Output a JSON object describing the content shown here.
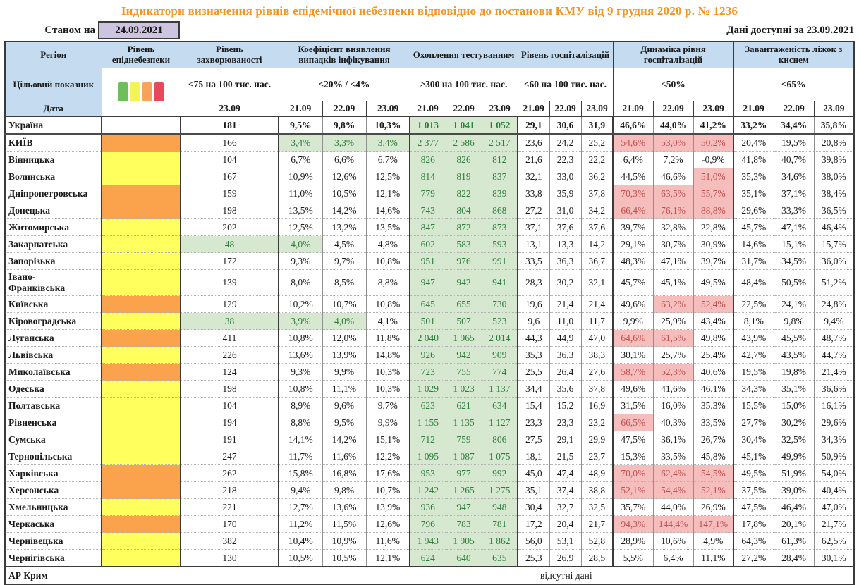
{
  "title": "Індикатори визначення рівнів епідемічної небезпеки відповідно до постанови КМУ від 9 грудня 2020 р. № 1236",
  "as_of": {
    "label": "Станом на",
    "date": "24.09.2021"
  },
  "data_available": "Дані доступні за 23.09.2021",
  "colors": {
    "title_orange": "#F7941D",
    "header_blue": "#C5DCF0",
    "date_box_lavender": "#CDC4DF",
    "level_orange": "#FBA24D",
    "level_yellow": "#FFFF5D",
    "good_bg_green": "#D7E8D1",
    "good_text_green": "#2E7D3B",
    "bad_bg_red": "#F6BDBD",
    "bad_text_red": "#C0504D"
  },
  "legend_swatches": [
    "#6EBF5C",
    "#F2F457",
    "#F8A25A",
    "#E6485D"
  ],
  "header": {
    "region_label": "Регіон",
    "target_label": "Цільовий показник",
    "date_label": "Дата",
    "groups": [
      {
        "label": "Рівень епіднебезпеки",
        "target": "",
        "dates": []
      },
      {
        "label": "Рівень захворюваності",
        "target": "<75 на 100 тис. нас.",
        "dates": [
          "23.09"
        ]
      },
      {
        "label": "Коефіцієнт виявлення випадків інфікування",
        "target": "≤20% / <4%",
        "dates": [
          "21.09",
          "22.09",
          "23.09"
        ]
      },
      {
        "label": "Охоплення тестуванням",
        "target": "≥300 на 100 тис. нас.",
        "dates": [
          "21.09",
          "22.09",
          "23.09"
        ]
      },
      {
        "label": "Рівень госпіталізацій",
        "target": "≤60 на 100 тис. нас.",
        "dates": [
          "21.09",
          "22.09",
          "23.09"
        ]
      },
      {
        "label": "Динаміка рівня госпіталізацій",
        "target": "≤50%",
        "dates": [
          "21.09",
          "22.09",
          "23.09"
        ]
      },
      {
        "label": "Завантаженість ліжок з киснем",
        "target": "≤65%",
        "dates": [
          "21.09",
          "22.09",
          "23.09"
        ]
      }
    ]
  },
  "rows": [
    {
      "region": "Україна",
      "level": "none",
      "bold": true,
      "incidence": "181",
      "detection": [
        "9,5%",
        "9,8%",
        "10,3%"
      ],
      "testing": [
        "1 013",
        "1 041",
        "1 052"
      ],
      "hospital": [
        "29,1",
        "30,6",
        "31,9"
      ],
      "dynamics": [
        "46,6%",
        "44,0%",
        "41,2%"
      ],
      "beds": [
        "33,2%",
        "34,4%",
        "35,8%"
      ]
    },
    {
      "region": "КИЇВ",
      "level": "orange",
      "incidence": "166",
      "detection": [
        "3,4%",
        "3,3%",
        "3,4%"
      ],
      "detection_green": [
        true,
        true,
        true
      ],
      "testing": [
        "2 377",
        "2 586",
        "2 517"
      ],
      "hospital": [
        "23,6",
        "24,2",
        "25,2"
      ],
      "dynamics": [
        "54,6%",
        "53,0%",
        "50,2%"
      ],
      "dynamics_red": [
        true,
        true,
        true
      ],
      "beds": [
        "20,4%",
        "19,5%",
        "20,8%"
      ]
    },
    {
      "region": "Вінницька",
      "level": "yellow",
      "incidence": "104",
      "detection": [
        "6,7%",
        "6,6%",
        "6,7%"
      ],
      "testing": [
        "826",
        "826",
        "812"
      ],
      "hospital": [
        "21,6",
        "22,3",
        "22,2"
      ],
      "dynamics": [
        "6,4%",
        "7,2%",
        "-0,9%"
      ],
      "beds": [
        "41,8%",
        "40,7%",
        "39,8%"
      ]
    },
    {
      "region": "Волинська",
      "level": "yellow",
      "incidence": "167",
      "detection": [
        "10,9%",
        "12,6%",
        "12,5%"
      ],
      "testing": [
        "814",
        "819",
        "837"
      ],
      "hospital": [
        "32,1",
        "33,0",
        "36,2"
      ],
      "dynamics": [
        "44,5%",
        "46,6%",
        "51,0%"
      ],
      "dynamics_red": [
        false,
        false,
        true
      ],
      "beds": [
        "35,3%",
        "34,6%",
        "38,0%"
      ]
    },
    {
      "region": "Дніпропетровська",
      "level": "orange",
      "incidence": "159",
      "detection": [
        "11,0%",
        "10,5%",
        "12,1%"
      ],
      "testing": [
        "779",
        "822",
        "839"
      ],
      "hospital": [
        "33,8",
        "35,9",
        "37,8"
      ],
      "dynamics": [
        "70,3%",
        "63,5%",
        "55,7%"
      ],
      "dynamics_red": [
        true,
        true,
        true
      ],
      "beds": [
        "35,1%",
        "37,1%",
        "38,4%"
      ]
    },
    {
      "region": "Донецька",
      "level": "orange",
      "incidence": "198",
      "detection": [
        "13,5%",
        "14,2%",
        "14,6%"
      ],
      "testing": [
        "743",
        "804",
        "868"
      ],
      "hospital": [
        "27,2",
        "31,0",
        "34,2"
      ],
      "dynamics": [
        "66,4%",
        "76,1%",
        "88,8%"
      ],
      "dynamics_red": [
        true,
        true,
        true
      ],
      "beds": [
        "29,6%",
        "33,3%",
        "36,5%"
      ]
    },
    {
      "region": "Житомирська",
      "level": "yellow",
      "incidence": "202",
      "detection": [
        "12,5%",
        "13,2%",
        "13,5%"
      ],
      "testing": [
        "847",
        "872",
        "873"
      ],
      "hospital": [
        "37,1",
        "37,6",
        "37,6"
      ],
      "dynamics": [
        "39,7%",
        "32,8%",
        "22,8%"
      ],
      "beds": [
        "45,7%",
        "47,1%",
        "46,4%"
      ]
    },
    {
      "region": "Закарпатська",
      "level": "yellow",
      "incidence": "48",
      "incidence_green": true,
      "detection": [
        "4,0%",
        "4,5%",
        "4,8%"
      ],
      "detection_green": [
        true,
        false,
        false
      ],
      "testing": [
        "602",
        "583",
        "593"
      ],
      "hospital": [
        "13,1",
        "13,3",
        "14,2"
      ],
      "dynamics": [
        "29,1%",
        "30,7%",
        "30,9%"
      ],
      "beds": [
        "14,6%",
        "15,1%",
        "15,7%"
      ]
    },
    {
      "region": "Запорізька",
      "level": "yellow",
      "incidence": "172",
      "detection": [
        "9,3%",
        "9,7%",
        "10,8%"
      ],
      "testing": [
        "951",
        "976",
        "991"
      ],
      "hospital": [
        "33,5",
        "36,3",
        "36,7"
      ],
      "dynamics": [
        "48,3%",
        "47,1%",
        "39,7%"
      ],
      "beds": [
        "31,7%",
        "34,5%",
        "36,0%"
      ]
    },
    {
      "region": "Івано-\nФранківська",
      "level": "yellow",
      "incidence": "139",
      "detection": [
        "8,0%",
        "8,5%",
        "8,8%"
      ],
      "testing": [
        "947",
        "942",
        "941"
      ],
      "hospital": [
        "28,3",
        "30,2",
        "32,1"
      ],
      "dynamics": [
        "45,7%",
        "45,1%",
        "49,5%"
      ],
      "beds": [
        "48,4%",
        "50,5%",
        "51,2%"
      ]
    },
    {
      "region": "Київська",
      "level": "orange",
      "incidence": "129",
      "detection": [
        "10,2%",
        "10,7%",
        "10,8%"
      ],
      "testing": [
        "645",
        "655",
        "730"
      ],
      "hospital": [
        "19,6",
        "21,4",
        "21,4"
      ],
      "dynamics": [
        "49,6%",
        "63,2%",
        "52,4%"
      ],
      "dynamics_red": [
        false,
        true,
        true
      ],
      "beds": [
        "22,5%",
        "24,1%",
        "24,8%"
      ]
    },
    {
      "region": "Кіровоградська",
      "level": "yellow",
      "incidence": "38",
      "incidence_green": true,
      "detection": [
        "3,9%",
        "4,0%",
        "4,1%"
      ],
      "detection_green": [
        true,
        true,
        false
      ],
      "testing": [
        "501",
        "507",
        "523"
      ],
      "hospital": [
        "9,6",
        "11,0",
        "11,7"
      ],
      "dynamics": [
        "9,9%",
        "25,9%",
        "43,4%"
      ],
      "beds": [
        "8,1%",
        "9,8%",
        "9,4%"
      ]
    },
    {
      "region": "Луганська",
      "level": "orange",
      "incidence": "411",
      "detection": [
        "10,8%",
        "12,0%",
        "11,8%"
      ],
      "testing": [
        "2 040",
        "1 965",
        "2 014"
      ],
      "hospital": [
        "44,3",
        "44,9",
        "47,0"
      ],
      "dynamics": [
        "64,6%",
        "61,5%",
        "49,8%"
      ],
      "dynamics_red": [
        true,
        true,
        false
      ],
      "beds": [
        "43,9%",
        "45,5%",
        "48,7%"
      ]
    },
    {
      "region": "Львівська",
      "level": "yellow",
      "incidence": "226",
      "detection": [
        "13,6%",
        "13,9%",
        "14,8%"
      ],
      "testing": [
        "926",
        "942",
        "909"
      ],
      "hospital": [
        "35,3",
        "36,3",
        "38,3"
      ],
      "dynamics": [
        "30,1%",
        "25,7%",
        "25,4%"
      ],
      "beds": [
        "42,7%",
        "43,5%",
        "44,7%"
      ]
    },
    {
      "region": "Миколаївська",
      "level": "orange",
      "incidence": "124",
      "detection": [
        "9,3%",
        "9,9%",
        "10,3%"
      ],
      "testing": [
        "723",
        "755",
        "774"
      ],
      "hospital": [
        "25,5",
        "26,4",
        "27,6"
      ],
      "dynamics": [
        "58,7%",
        "52,3%",
        "40,6%"
      ],
      "dynamics_red": [
        true,
        true,
        false
      ],
      "beds": [
        "19,5%",
        "19,8%",
        "21,4%"
      ]
    },
    {
      "region": "Одеська",
      "level": "yellow",
      "incidence": "198",
      "detection": [
        "10,8%",
        "11,1%",
        "10,3%"
      ],
      "testing": [
        "1 029",
        "1 023",
        "1 137"
      ],
      "hospital": [
        "34,4",
        "35,6",
        "37,8"
      ],
      "dynamics": [
        "49,6%",
        "41,6%",
        "46,1%"
      ],
      "beds": [
        "34,3%",
        "35,1%",
        "36,6%"
      ]
    },
    {
      "region": "Полтавська",
      "level": "yellow",
      "incidence": "104",
      "detection": [
        "8,9%",
        "9,6%",
        "9,7%"
      ],
      "testing": [
        "623",
        "621",
        "634"
      ],
      "hospital": [
        "15,4",
        "15,2",
        "16,9"
      ],
      "dynamics": [
        "31,5%",
        "16,0%",
        "35,3%"
      ],
      "beds": [
        "15,5%",
        "15,0%",
        "16,1%"
      ]
    },
    {
      "region": "Рівненська",
      "level": "yellow",
      "incidence": "194",
      "detection": [
        "8,8%",
        "9,5%",
        "9,9%"
      ],
      "testing": [
        "1 155",
        "1 135",
        "1 127"
      ],
      "hospital": [
        "23,3",
        "23,3",
        "23,2"
      ],
      "dynamics": [
        "66,5%",
        "40,3%",
        "33,5%"
      ],
      "dynamics_red": [
        true,
        false,
        false
      ],
      "beds": [
        "27,7%",
        "30,2%",
        "29,6%"
      ]
    },
    {
      "region": "Сумська",
      "level": "yellow",
      "incidence": "191",
      "detection": [
        "14,1%",
        "14,2%",
        "15,1%"
      ],
      "testing": [
        "712",
        "759",
        "806"
      ],
      "hospital": [
        "27,5",
        "29,1",
        "29,9"
      ],
      "dynamics": [
        "47,5%",
        "36,1%",
        "26,7%"
      ],
      "beds": [
        "30,4%",
        "32,5%",
        "34,3%"
      ]
    },
    {
      "region": "Тернопільська",
      "level": "yellow",
      "incidence": "247",
      "detection": [
        "11,7%",
        "11,6%",
        "12,2%"
      ],
      "testing": [
        "1 095",
        "1 087",
        "1 075"
      ],
      "hospital": [
        "18,1",
        "21,5",
        "23,7"
      ],
      "dynamics": [
        "15,3%",
        "33,5%",
        "45,8%"
      ],
      "beds": [
        "45,1%",
        "49,9%",
        "50,9%"
      ]
    },
    {
      "region": "Харківська",
      "level": "orange",
      "incidence": "262",
      "detection": [
        "15,8%",
        "16,8%",
        "17,6%"
      ],
      "testing": [
        "953",
        "977",
        "992"
      ],
      "hospital": [
        "45,0",
        "47,4",
        "48,9"
      ],
      "dynamics": [
        "70,0%",
        "62,4%",
        "54,5%"
      ],
      "dynamics_red": [
        true,
        true,
        true
      ],
      "beds": [
        "49,5%",
        "51,9%",
        "54,0%"
      ]
    },
    {
      "region": "Херсонська",
      "level": "orange",
      "incidence": "218",
      "detection": [
        "9,4%",
        "9,8%",
        "10,7%"
      ],
      "testing": [
        "1 242",
        "1 265",
        "1 275"
      ],
      "hospital": [
        "35,1",
        "37,4",
        "38,8"
      ],
      "dynamics": [
        "52,1%",
        "54,4%",
        "52,1%"
      ],
      "dynamics_red": [
        true,
        true,
        true
      ],
      "beds": [
        "37,5%",
        "39,0%",
        "40,4%"
      ]
    },
    {
      "region": "Хмельницька",
      "level": "yellow",
      "incidence": "221",
      "detection": [
        "12,7%",
        "13,6%",
        "13,9%"
      ],
      "testing": [
        "936",
        "947",
        "948"
      ],
      "hospital": [
        "30,4",
        "32,7",
        "32,5"
      ],
      "dynamics": [
        "35,7%",
        "44,0%",
        "26,9%"
      ],
      "beds": [
        "47,5%",
        "46,4%",
        "47,0%"
      ]
    },
    {
      "region": "Черкаська",
      "level": "orange",
      "incidence": "170",
      "detection": [
        "11,2%",
        "11,5%",
        "12,6%"
      ],
      "testing": [
        "796",
        "783",
        "781"
      ],
      "hospital": [
        "17,2",
        "20,4",
        "21,7"
      ],
      "dynamics": [
        "94,3%",
        "144,4%",
        "147,1%"
      ],
      "dynamics_red": [
        true,
        true,
        true
      ],
      "beds": [
        "17,8%",
        "20,1%",
        "21,7%"
      ]
    },
    {
      "region": "Чернівецька",
      "level": "yellow",
      "incidence": "382",
      "detection": [
        "10,4%",
        "10,9%",
        "11,6%"
      ],
      "testing": [
        "1 943",
        "1 905",
        "1 862"
      ],
      "hospital": [
        "56,0",
        "53,1",
        "52,8"
      ],
      "dynamics": [
        "28,9%",
        "10,6%",
        "4,9%"
      ],
      "beds": [
        "64,3%",
        "61,3%",
        "62,5%"
      ]
    },
    {
      "region": "Чернігівська",
      "level": "yellow",
      "incidence": "130",
      "detection": [
        "10,5%",
        "10,5%",
        "12,1%"
      ],
      "testing": [
        "624",
        "640",
        "635"
      ],
      "hospital": [
        "25,3",
        "26,9",
        "28,5"
      ],
      "dynamics": [
        "5,5%",
        "6,4%",
        "11,1%"
      ],
      "beds": [
        "27,2%",
        "28,4%",
        "30,1%"
      ]
    }
  ],
  "no_data": {
    "region": "АР Крим",
    "text": "відсутні дані"
  }
}
